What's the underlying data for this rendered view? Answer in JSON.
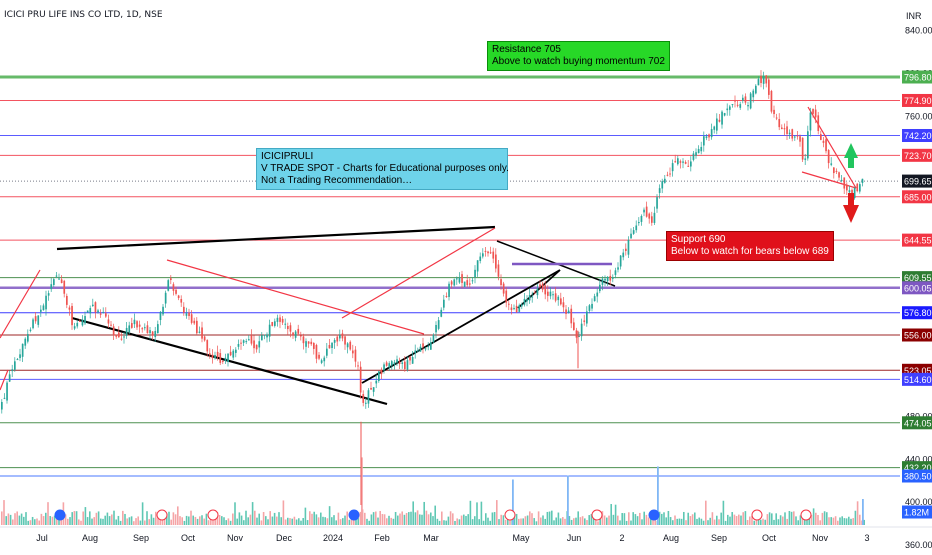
{
  "header": {
    "title": "ICICI PRU LIFE INS CO LTD, 1D, NSE"
  },
  "currency_label": "INR",
  "annotations": {
    "resistance": {
      "line1": "Resistance  705",
      "line2": "Above to watch buying momentum 702"
    },
    "support": {
      "line1": "Support 690",
      "line2": "Below to watch for bears below 689"
    },
    "note": {
      "line1": "ICICIPRULI",
      "line2": "V TRADE SPOT - Charts for Educational purposes only.",
      "line3": "Not a Trading Recommendation…"
    }
  },
  "chart_data": {
    "type": "candlestick",
    "title": "ICICI PRU LIFE INS CO LTD, 1D, NSE",
    "y_unit": "INR",
    "ylim": [
      350,
      845
    ],
    "y_ticks": [
      360,
      400,
      440,
      480,
      760,
      800,
      840
    ],
    "x_ticks": [
      "Jul",
      "Aug",
      "Sep",
      "Oct",
      "Nov",
      "Dec",
      "2024",
      "Feb",
      "Mar",
      "May",
      "Jun",
      "2",
      "Aug",
      "Sep",
      "Oct",
      "Nov",
      "3"
    ],
    "price_levels": [
      {
        "value": 796.8,
        "label": "796.80",
        "color": "#4caf50"
      },
      {
        "value": 774.9,
        "label": "774.90",
        "color": "#f23645"
      },
      {
        "value": 742.2,
        "label": "742.20",
        "color": "#3f3fff"
      },
      {
        "value": 723.7,
        "label": "723.70",
        "color": "#f23645"
      },
      {
        "value": 699.65,
        "label": "699.65",
        "color": "#131722"
      },
      {
        "value": 685.0,
        "label": "685.00",
        "color": "#f23645"
      },
      {
        "value": 644.55,
        "label": "644.55",
        "color": "#f23645"
      },
      {
        "value": 609.55,
        "label": "609.55",
        "color": "#2e7d32"
      },
      {
        "value": 600.05,
        "label": "600.05",
        "color": "#7e57c2"
      },
      {
        "value": 576.8,
        "label": "576.80",
        "color": "#1a1aff"
      },
      {
        "value": 556.0,
        "label": "556.00",
        "color": "#8b0000"
      },
      {
        "value": 523.05,
        "label": "523.05",
        "color": "#8b0000"
      },
      {
        "value": 514.6,
        "label": "514.60",
        "color": "#3f3fff"
      },
      {
        "value": 474.05,
        "label": "474.05",
        "color": "#2e7d32"
      },
      {
        "value": 432.2,
        "label": "432.20",
        "color": "#2e7d32"
      },
      {
        "value": 380.5,
        "label": "380.50",
        "color": "#2962ff"
      },
      {
        "value": 699.65,
        "label": "1.82M",
        "color": "#2962ff"
      }
    ],
    "price_path": [
      [
        0,
        490
      ],
      [
        10,
        520
      ],
      [
        20,
        540
      ],
      [
        30,
        565
      ],
      [
        40,
        580
      ],
      [
        50,
        600
      ],
      [
        57,
        612
      ],
      [
        66,
        585
      ],
      [
        74,
        560
      ],
      [
        82,
        575
      ],
      [
        92,
        582
      ],
      [
        102,
        578
      ],
      [
        112,
        560
      ],
      [
        122,
        553
      ],
      [
        132,
        568
      ],
      [
        142,
        562
      ],
      [
        152,
        555
      ],
      [
        160,
        575
      ],
      [
        168,
        608
      ],
      [
        178,
        590
      ],
      [
        188,
        570
      ],
      [
        198,
        558
      ],
      [
        210,
        538
      ],
      [
        222,
        532
      ],
      [
        232,
        540
      ],
      [
        244,
        552
      ],
      [
        256,
        546
      ],
      [
        266,
        558
      ],
      [
        276,
        572
      ],
      [
        290,
        560
      ],
      [
        300,
        552
      ],
      [
        310,
        545
      ],
      [
        318,
        530
      ],
      [
        328,
        545
      ],
      [
        338,
        555
      ],
      [
        348,
        548
      ],
      [
        356,
        532
      ],
      [
        362,
        490
      ],
      [
        370,
        505
      ],
      [
        380,
        522
      ],
      [
        392,
        535
      ],
      [
        404,
        528
      ],
      [
        416,
        540
      ],
      [
        428,
        548
      ],
      [
        438,
        570
      ],
      [
        448,
        600
      ],
      [
        458,
        612
      ],
      [
        468,
        598
      ],
      [
        478,
        625
      ],
      [
        488,
        635
      ],
      [
        494,
        620
      ],
      [
        502,
        600
      ],
      [
        510,
        575
      ],
      [
        518,
        582
      ],
      [
        528,
        590
      ],
      [
        538,
        600
      ],
      [
        548,
        594
      ],
      [
        558,
        588
      ],
      [
        568,
        575
      ],
      [
        576,
        552
      ],
      [
        584,
        572
      ],
      [
        592,
        590
      ],
      [
        600,
        605
      ],
      [
        610,
        608
      ],
      [
        620,
        628
      ],
      [
        632,
        650
      ],
      [
        642,
        672
      ],
      [
        652,
        660
      ],
      [
        658,
        690
      ],
      [
        666,
        705
      ],
      [
        676,
        722
      ],
      [
        686,
        712
      ],
      [
        696,
        730
      ],
      [
        708,
        744
      ],
      [
        718,
        758
      ],
      [
        728,
        768
      ],
      [
        738,
        775
      ],
      [
        748,
        774
      ],
      [
        756,
        790
      ],
      [
        764,
        796
      ],
      [
        770,
        768
      ],
      [
        778,
        750
      ],
      [
        788,
        742
      ],
      [
        798,
        738
      ],
      [
        804,
        715
      ],
      [
        810,
        770
      ],
      [
        818,
        748
      ],
      [
        826,
        724
      ],
      [
        834,
        708
      ],
      [
        842,
        695
      ],
      [
        850,
        688
      ],
      [
        856,
        692
      ],
      [
        862,
        699.65
      ]
    ],
    "volume_spikes": [
      {
        "x": 361,
        "vol": 2.6
      },
      {
        "x": 657,
        "vol": 2.25
      },
      {
        "x": 512,
        "vol": 1.75
      },
      {
        "x": 567,
        "vol": 1.9
      },
      {
        "x": 862,
        "vol": 1.0
      }
    ],
    "volume_last": "1.82M"
  }
}
